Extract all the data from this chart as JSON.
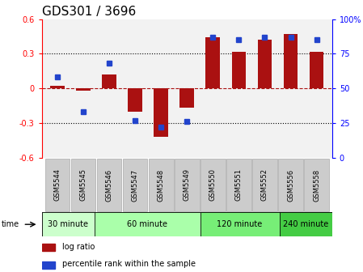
{
  "title": "GDS301 / 3696",
  "samples": [
    "GSM5544",
    "GSM5545",
    "GSM5546",
    "GSM5547",
    "GSM5548",
    "GSM5549",
    "GSM5550",
    "GSM5551",
    "GSM5552",
    "GSM5556",
    "GSM5558"
  ],
  "log_ratio": [
    0.02,
    -0.02,
    0.12,
    -0.2,
    -0.42,
    -0.17,
    0.44,
    0.32,
    0.42,
    0.47,
    0.32
  ],
  "percentile_rank": [
    58,
    33,
    68,
    27,
    22,
    26,
    87,
    85,
    87,
    87,
    85
  ],
  "group_defs": [
    {
      "label": "30 minute",
      "start": 0,
      "end": 2,
      "color": "#ccffcc"
    },
    {
      "label": "60 minute",
      "start": 2,
      "end": 6,
      "color": "#aaffaa"
    },
    {
      "label": "120 minute",
      "start": 6,
      "end": 9,
      "color": "#77ee77"
    },
    {
      "label": "240 minute",
      "start": 9,
      "end": 11,
      "color": "#44cc44"
    }
  ],
  "bar_color": "#aa1111",
  "dot_color": "#2244cc",
  "ylim_left": [
    -0.6,
    0.6
  ],
  "ylim_right": [
    0,
    100
  ],
  "yticks_left": [
    -0.6,
    -0.3,
    0.0,
    0.3,
    0.6
  ],
  "ytick_labels_left": [
    "-0.6",
    "-0.3",
    "0",
    "0.3",
    "0.6"
  ],
  "yticks_right": [
    0,
    25,
    50,
    75,
    100
  ],
  "ytick_labels_right": [
    "0",
    "25",
    "50",
    "75",
    "100%"
  ],
  "hlines_dotted": [
    -0.3,
    0.3
  ],
  "plot_bg": "#f2f2f2",
  "sample_box_color": "#cccccc",
  "sample_box_edge": "#aaaaaa",
  "time_label": "time",
  "legend_items": [
    {
      "label": "log ratio",
      "color": "#aa1111"
    },
    {
      "label": "percentile rank within the sample",
      "color": "#2244cc"
    }
  ],
  "tick_fontsize": 7,
  "label_fontsize": 7,
  "title_fontsize": 11
}
